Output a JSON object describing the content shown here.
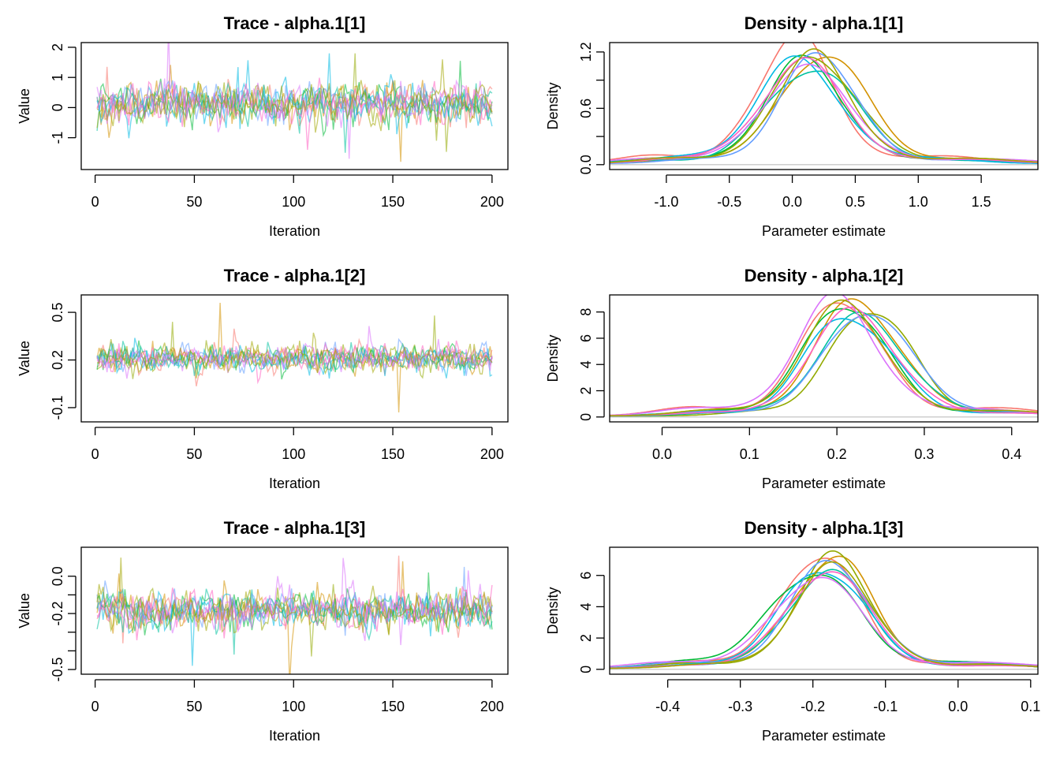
{
  "chart_data": [
    {
      "type": "line",
      "panel": "trace",
      "title": "Trace - alpha.1[1]",
      "xlabel": "Iteration",
      "ylabel": "Value",
      "xlim": [
        1,
        200
      ],
      "ylim": [
        -1.9,
        2.0
      ],
      "xticks": [
        0,
        50,
        100,
        150,
        200
      ],
      "yticks": [
        -1,
        0,
        1,
        2
      ],
      "chains": 10,
      "center": 0.15,
      "spread": 0.28,
      "spikes": [
        [
          6,
          1.35,
          0
        ],
        [
          37,
          2.7,
          7
        ],
        [
          49,
          -0.75,
          3
        ],
        [
          118,
          1.8,
          5
        ],
        [
          126,
          -1.5,
          4
        ],
        [
          128,
          -1.7,
          7
        ],
        [
          131,
          1.8,
          2
        ],
        [
          154,
          -1.8,
          1
        ],
        [
          172,
          -1.1,
          2
        ],
        [
          175,
          1.6,
          9
        ],
        [
          184,
          1.55,
          3
        ]
      ]
    },
    {
      "type": "line",
      "panel": "density",
      "title": "Density - alpha.1[1]",
      "xlabel": "Parameter estimate",
      "ylabel": "Density",
      "xlim": [
        -1.45,
        1.95
      ],
      "ylim": [
        0,
        1.3
      ],
      "xticks": [
        -1.0,
        -0.5,
        0.0,
        0.5,
        1.0,
        1.5
      ],
      "yticks": [
        0.0,
        0.6,
        1.2
      ],
      "ytick_labels": [
        "0.0",
        "0.6",
        "1.2"
      ],
      "extra_yticks": [
        0.3,
        0.9
      ],
      "chains": 10,
      "curves": [
        {
          "mean": 0.02,
          "sd": 0.3,
          "peak": 1.35
        },
        {
          "mean": 0.25,
          "sd": 0.33,
          "peak": 1.2
        },
        {
          "mean": 0.18,
          "sd": 0.34,
          "peak": 1.15
        },
        {
          "mean": 0.1,
          "sd": 0.31,
          "peak": 1.1
        },
        {
          "mean": 0.15,
          "sd": 0.35,
          "peak": 1.05
        },
        {
          "mean": 0.05,
          "sd": 0.32,
          "peak": 1.12
        },
        {
          "mean": 0.22,
          "sd": 0.3,
          "peak": 1.18
        },
        {
          "mean": 0.12,
          "sd": 0.36,
          "peak": 1.0
        },
        {
          "mean": 0.08,
          "sd": 0.33,
          "peak": 1.08
        },
        {
          "mean": 0.17,
          "sd": 0.31,
          "peak": 1.13
        }
      ]
    },
    {
      "type": "line",
      "panel": "trace",
      "title": "Trace - alpha.1[2]",
      "xlabel": "Iteration",
      "ylabel": "Value",
      "xlim": [
        1,
        200
      ],
      "ylim": [
        -0.16,
        0.58
      ],
      "xticks": [
        0,
        50,
        100,
        150,
        200
      ],
      "yticks": [
        -0.1,
        0.2,
        0.5
      ],
      "chains": 10,
      "center": 0.21,
      "spread": 0.035,
      "spikes": [
        [
          19,
          0.08,
          2
        ],
        [
          39,
          0.44,
          2
        ],
        [
          50,
          0.1,
          4
        ],
        [
          63,
          0.56,
          1
        ],
        [
          71,
          0.32,
          0
        ],
        [
          153,
          -0.13,
          1
        ],
        [
          155,
          0.3,
          3
        ],
        [
          171,
          0.48,
          2
        ],
        [
          187,
          0.1,
          6
        ]
      ]
    },
    {
      "type": "line",
      "panel": "density",
      "title": "Density - alpha.1[2]",
      "xlabel": "Parameter estimate",
      "ylabel": "Density",
      "xlim": [
        -0.06,
        0.43
      ],
      "ylim": [
        0,
        9.3
      ],
      "xticks": [
        0.0,
        0.1,
        0.2,
        0.3,
        0.4
      ],
      "yticks": [
        0,
        2,
        4,
        6,
        8
      ],
      "chains": 10,
      "curves": [
        {
          "mean": 0.205,
          "sd": 0.045,
          "peak": 9.0
        },
        {
          "mean": 0.225,
          "sd": 0.047,
          "peak": 8.9
        },
        {
          "mean": 0.24,
          "sd": 0.044,
          "peak": 8.5
        },
        {
          "mean": 0.21,
          "sd": 0.046,
          "peak": 8.7
        },
        {
          "mean": 0.23,
          "sd": 0.05,
          "peak": 7.5
        },
        {
          "mean": 0.215,
          "sd": 0.048,
          "peak": 7.9
        },
        {
          "mean": 0.235,
          "sd": 0.049,
          "peak": 8.1
        },
        {
          "mean": 0.2,
          "sd": 0.047,
          "peak": 8.8
        },
        {
          "mean": 0.22,
          "sd": 0.05,
          "peak": 7.8
        },
        {
          "mean": 0.21,
          "sd": 0.046,
          "peak": 8.6
        }
      ]
    },
    {
      "type": "line",
      "panel": "trace",
      "title": "Trace - alpha.1[3]",
      "xlabel": "Iteration",
      "ylabel": "Value",
      "xlim": [
        1,
        200
      ],
      "ylim": [
        -0.5,
        0.13
      ],
      "xticks": [
        0,
        50,
        100,
        150,
        200
      ],
      "yticks": [
        -0.5,
        -0.2,
        0.0
      ],
      "ytick_labels": [
        "-0.5",
        "-0.2",
        "0.0"
      ],
      "extra_yticks": [
        -0.4,
        -0.3,
        -0.1
      ],
      "chains": 10,
      "center": -0.18,
      "spread": 0.042,
      "spikes": [
        [
          13,
          0.1,
          9
        ],
        [
          14,
          -0.36,
          0
        ],
        [
          49,
          -0.48,
          5
        ],
        [
          70,
          -0.42,
          4
        ],
        [
          109,
          -0.43,
          2
        ],
        [
          153,
          0.11,
          0
        ],
        [
          155,
          0.08,
          1
        ],
        [
          168,
          0.02,
          3
        ],
        [
          186,
          0.05,
          6
        ]
      ]
    },
    {
      "type": "line",
      "panel": "density",
      "title": "Density - alpha.1[3]",
      "xlabel": "Parameter estimate",
      "ylabel": "Density",
      "xlim": [
        -0.48,
        0.11
      ],
      "ylim": [
        0,
        7.8
      ],
      "xticks": [
        -0.4,
        -0.3,
        -0.2,
        -0.1,
        0.0,
        0.1
      ],
      "yticks": [
        0,
        2,
        4,
        6
      ],
      "chains": 10,
      "curves": [
        {
          "mean": -0.19,
          "sd": 0.052,
          "peak": 7.5
        },
        {
          "mean": -0.175,
          "sd": 0.054,
          "peak": 7.3
        },
        {
          "mean": -0.17,
          "sd": 0.053,
          "peak": 7.0
        },
        {
          "mean": -0.2,
          "sd": 0.058,
          "peak": 6.4
        },
        {
          "mean": -0.18,
          "sd": 0.057,
          "peak": 6.1
        },
        {
          "mean": -0.185,
          "sd": 0.056,
          "peak": 6.6
        },
        {
          "mean": -0.175,
          "sd": 0.055,
          "peak": 6.8
        },
        {
          "mean": -0.195,
          "sd": 0.06,
          "peak": 5.9
        },
        {
          "mean": -0.18,
          "sd": 0.058,
          "peak": 6.2
        },
        {
          "mean": -0.17,
          "sd": 0.054,
          "peak": 6.5
        }
      ]
    }
  ],
  "colors": {
    "chains": [
      "#F8766D",
      "#D39200",
      "#93AA00",
      "#00BA38",
      "#00C19F",
      "#00B9E3",
      "#619CFF",
      "#DB72FB",
      "#FF61C3",
      "#A3A500"
    ],
    "zero_line": "#bebebe"
  }
}
